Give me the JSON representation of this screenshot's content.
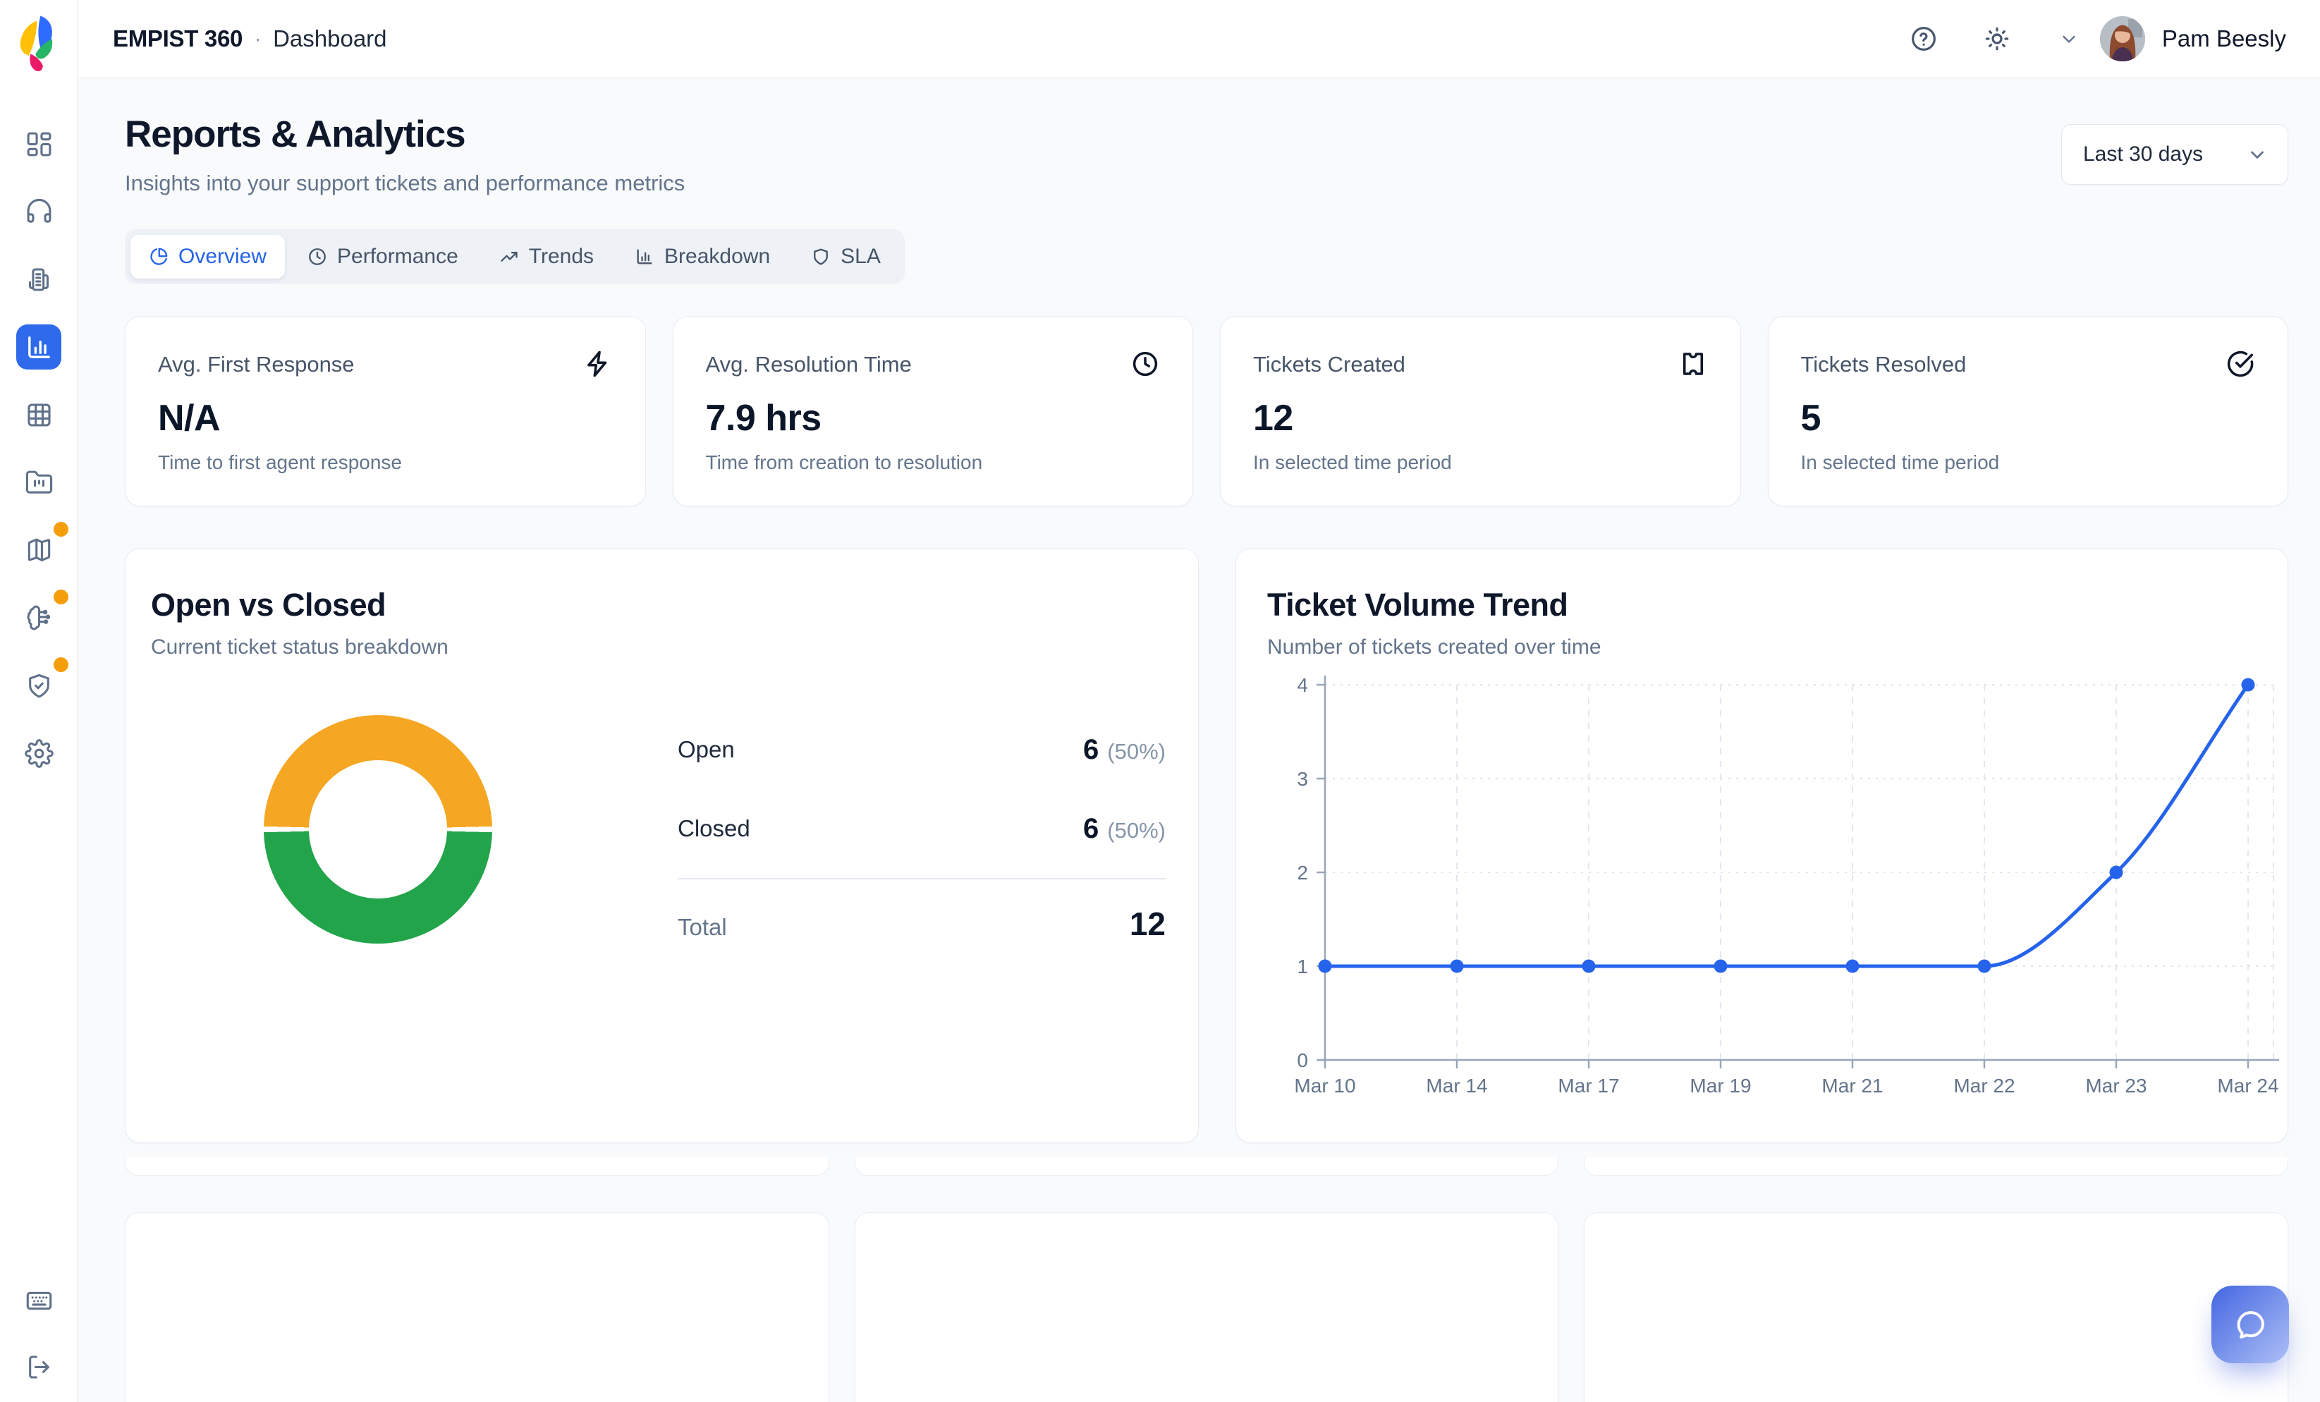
{
  "header": {
    "app_title": "EMPIST 360",
    "separator": "·",
    "breadcrumb": "Dashboard",
    "user_name": "Pam Beesly",
    "icons": [
      "help-icon",
      "theme-light-icon",
      "chevron-down-icon",
      "avatar"
    ]
  },
  "sidebar": {
    "items": [
      {
        "icon": "layout-dashboard-icon"
      },
      {
        "icon": "headset-icon"
      },
      {
        "icon": "fax-icon"
      },
      {
        "icon": "bar-chart-icon",
        "active": true
      },
      {
        "icon": "table-grid-icon"
      },
      {
        "icon": "folder-kanban-icon"
      },
      {
        "icon": "map-icon",
        "badge": true
      },
      {
        "icon": "brain-icon",
        "badge": true
      },
      {
        "icon": "shield-check-icon",
        "badge": true
      },
      {
        "icon": "settings-icon"
      }
    ],
    "bottom": [
      {
        "icon": "keyboard-icon"
      },
      {
        "icon": "logout-icon"
      }
    ],
    "badge_color": "#f59e0b",
    "active_color": "#2e6aeb"
  },
  "page": {
    "title": "Reports & Analytics",
    "subtitle": "Insights into your support tickets and performance metrics",
    "date_range": "Last 30 days"
  },
  "tabs": {
    "active": "Overview",
    "items": [
      {
        "label": "Overview",
        "icon": "pie-chart-icon"
      },
      {
        "label": "Performance",
        "icon": "clock-icon"
      },
      {
        "label": "Trends",
        "icon": "trending-up-icon"
      },
      {
        "label": "Breakdown",
        "icon": "bar-chart-icon"
      },
      {
        "label": "SLA",
        "icon": "shield-icon"
      }
    ]
  },
  "stats": [
    {
      "label": "Avg. First Response",
      "value": "N/A",
      "description": "Time to first agent response",
      "icon": "zap-icon"
    },
    {
      "label": "Avg. Resolution Time",
      "value": "7.9 hrs",
      "description": "Time from creation to resolution",
      "icon": "clock-icon"
    },
    {
      "label": "Tickets Created",
      "value": "12",
      "description": "In selected time period",
      "icon": "ticket-icon"
    },
    {
      "label": "Tickets Resolved",
      "value": "5",
      "description": "In selected time period",
      "icon": "check-circle-icon"
    }
  ],
  "open_vs_closed": {
    "title": "Open vs Closed",
    "subtitle": "Current ticket status breakdown",
    "rows": [
      {
        "label": "Open",
        "value": "6",
        "pct": "(50%)"
      },
      {
        "label": "Closed",
        "value": "6",
        "pct": "(50%)"
      }
    ],
    "total_label": "Total",
    "total_value": "12"
  },
  "trend": {
    "title": "Ticket Volume Trend",
    "subtitle": "Number of tickets created over time"
  },
  "chart_data": [
    {
      "type": "pie",
      "title": "Open vs Closed",
      "labels": [
        "Open",
        "Closed"
      ],
      "values": [
        6,
        6
      ],
      "percentages": [
        "50%",
        "50%"
      ],
      "total": 12,
      "colors": [
        "#F5A623",
        "#21A44A"
      ],
      "donut": true,
      "legend_position": "right"
    },
    {
      "type": "line",
      "title": "Ticket Volume Trend",
      "x": [
        "Mar 10",
        "Mar 14",
        "Mar 17",
        "Mar 19",
        "Mar 21",
        "Mar 22",
        "Mar 23",
        "Mar 24"
      ],
      "values": [
        1,
        1,
        1,
        1,
        1,
        1,
        2,
        4
      ],
      "y_ticks": [
        0,
        1,
        2,
        3,
        4
      ],
      "ylim": [
        0,
        4
      ],
      "color": "#2563EB",
      "grid": true,
      "xlabel": "",
      "ylabel": ""
    }
  ]
}
